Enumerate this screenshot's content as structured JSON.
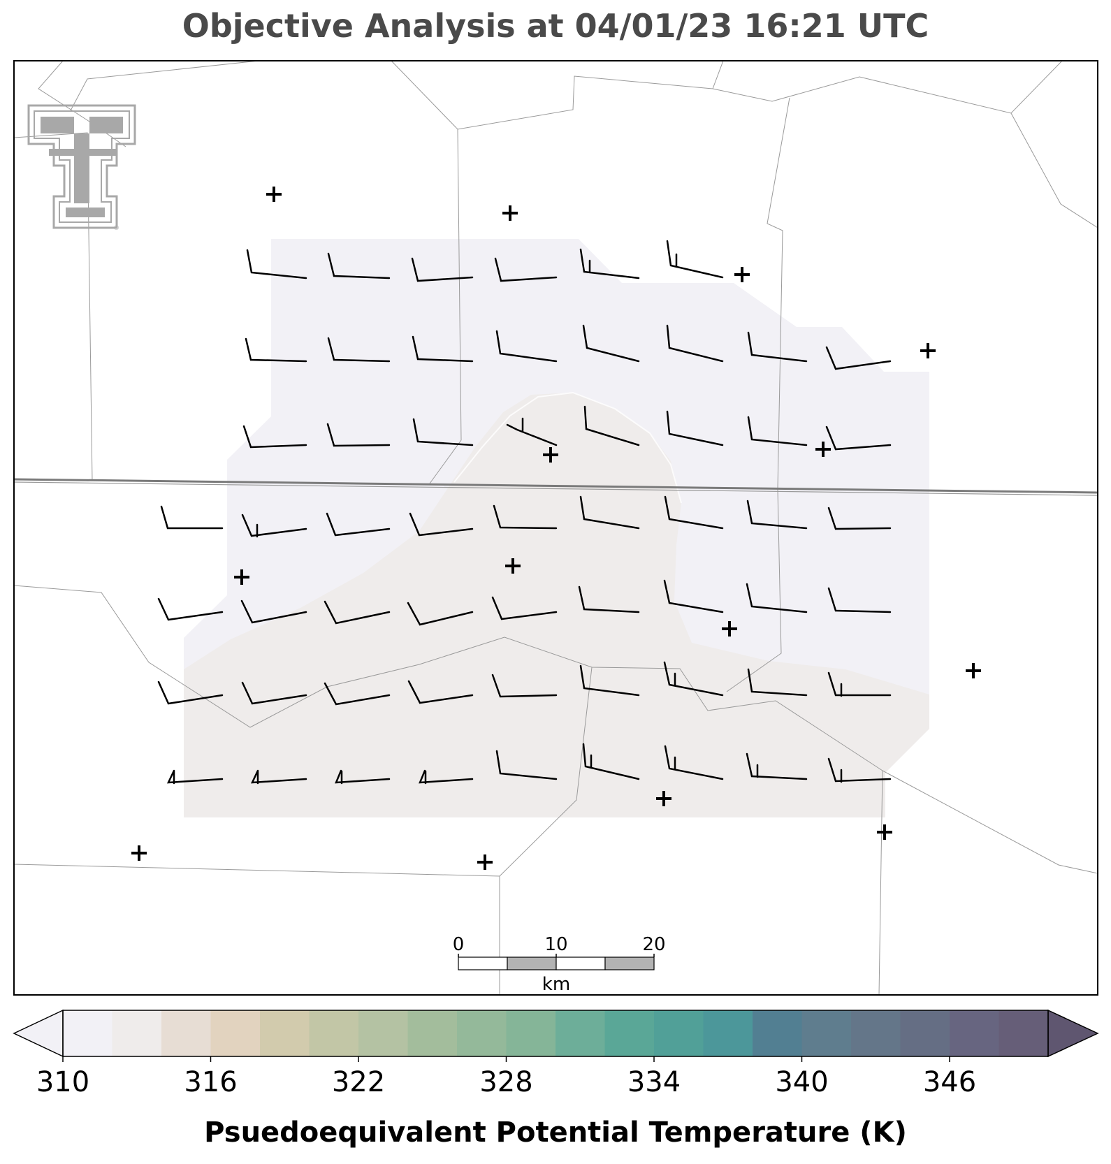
{
  "title": "Objective Analysis at 04/01/23 16:21 UTC",
  "scale_bar": {
    "ticks": [
      "0",
      "10",
      "20"
    ],
    "unit": "km"
  },
  "colorbar": {
    "label": "Psuedoequivalent Potential Temperature (K)",
    "min": 310,
    "max": 350,
    "step": 2,
    "tick_labels": [
      "310",
      "316",
      "322",
      "328",
      "334",
      "340",
      "346"
    ],
    "colors": [
      "#f2f1f6",
      "#efeceb",
      "#e7ddd4",
      "#e2d3bf",
      "#d2cbad",
      "#c2c6a6",
      "#b4c2a3",
      "#a3bd9c",
      "#94b99a",
      "#85b598",
      "#6dae99",
      "#5aa797",
      "#51a098",
      "#4c979a",
      "#527f92",
      "#5f7d8e",
      "#647689",
      "#656e84",
      "#676580",
      "#665e78"
    ],
    "extend_under": "#f2f1f6",
    "extend_over": "#5f5670"
  },
  "logo_name": "Texas Tech double T logo",
  "colors": {
    "field_low": "#f2f1f6",
    "field_high": "#efeceb",
    "border_state": "#7a7a7a",
    "border_county": "#9a9a9a",
    "logo_gray": "#a8a8a8"
  }
}
